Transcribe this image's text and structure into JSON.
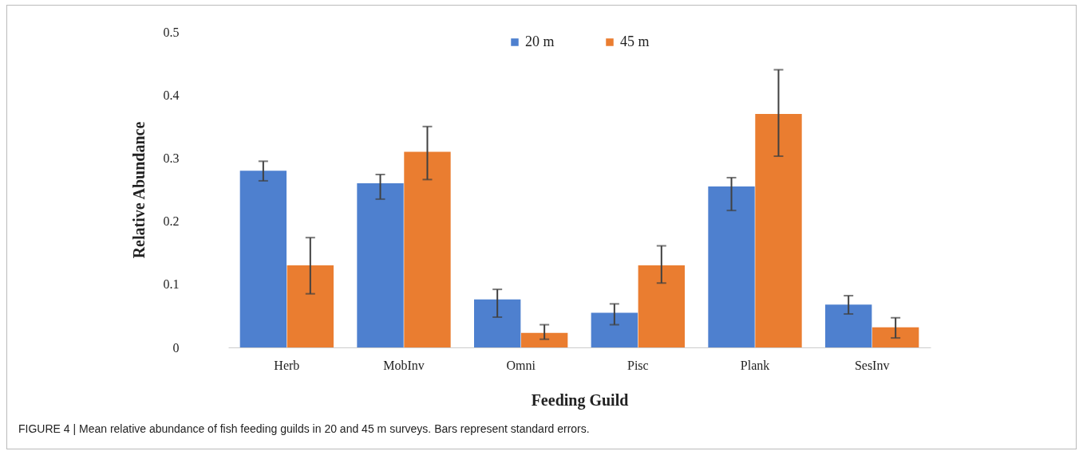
{
  "chart_data": {
    "type": "bar",
    "xlabel": "Feeding Guild",
    "ylabel": "Relative Abundance",
    "categories": [
      "Herb",
      "MobInv",
      "Omni",
      "Pisc",
      "Plank",
      "SesInv"
    ],
    "series": [
      {
        "name": "20 m",
        "color": "#4e80cf",
        "values": [
          0.28,
          0.26,
          0.076,
          0.055,
          0.255,
          0.068
        ],
        "errors": [
          [
            0.264,
            0.295
          ],
          [
            0.235,
            0.274
          ],
          [
            0.048,
            0.092
          ],
          [
            0.036,
            0.069
          ],
          [
            0.217,
            0.269
          ],
          [
            0.053,
            0.082
          ]
        ]
      },
      {
        "name": "45 m",
        "color": "#ea7d30",
        "values": [
          0.13,
          0.31,
          0.023,
          0.13,
          0.37,
          0.032
        ],
        "errors": [
          [
            0.085,
            0.174
          ],
          [
            0.266,
            0.35
          ],
          [
            0.013,
            0.036
          ],
          [
            0.102,
            0.161
          ],
          [
            0.303,
            0.44
          ],
          [
            0.015,
            0.047
          ]
        ]
      }
    ],
    "ylim": [
      0,
      0.5
    ],
    "yticks": [
      0,
      0.1,
      0.2,
      0.3,
      0.4,
      0.5
    ],
    "grid": false,
    "legend": "top",
    "annotations": [
      "FIGURE 4 | Mean relative abundance of fish feeding guilds in 20 and 45 m surveys. Bars represent standard errors."
    ]
  }
}
